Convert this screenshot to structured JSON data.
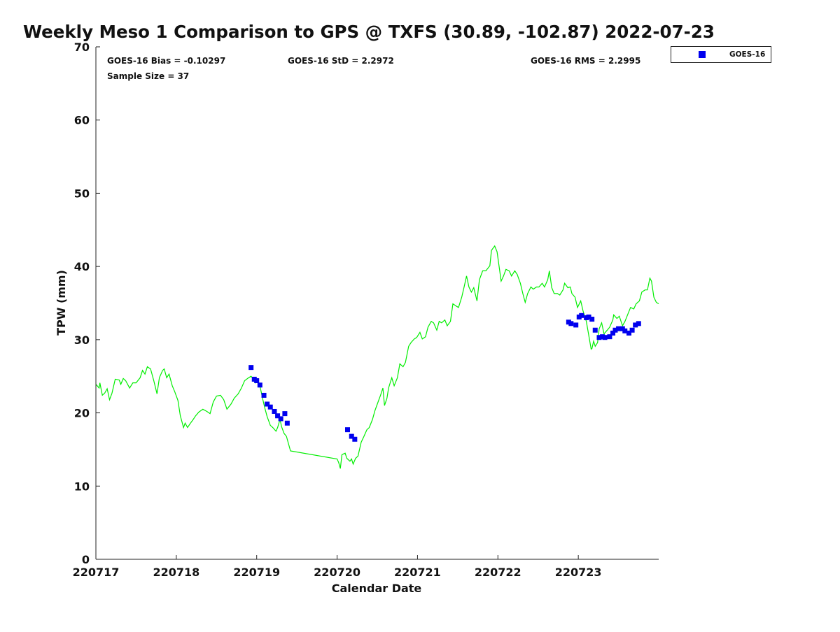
{
  "chart_data": {
    "type": "line+scatter",
    "title": "Weekly Meso 1 Comparison to GPS @ TXFS (30.89, -102.87) 2022-07-23",
    "xlabel": "Calendar Date",
    "ylabel": "TPW (mm)",
    "xlim_days": [
      0,
      7
    ],
    "ylim": [
      0,
      70
    ],
    "y_ticks": [
      "0",
      "10",
      "20",
      "30",
      "40",
      "50",
      "60",
      "70"
    ],
    "x_ticks": [
      "220717",
      "220718",
      "220719",
      "220720",
      "220721",
      "220722",
      "220723"
    ],
    "stats": {
      "bias": "GOES-16 Bias = -0.10297",
      "std": "GOES-16 StD = 2.2972",
      "rms": "GOES-16 RMS = 2.2995",
      "sample": "Sample Size = 37"
    },
    "legend": {
      "position": "top-right-outside",
      "entries": [
        "GOES-16"
      ]
    },
    "colors": {
      "gps": "#00ee00",
      "goes": "#0000ee"
    },
    "series": [
      {
        "name": "GPS",
        "style": "line",
        "points": [
          [
            0,
            23.9
          ],
          [
            0.04,
            23.4
          ],
          [
            0.05,
            24.1
          ],
          [
            0.08,
            22.4
          ],
          [
            0.11,
            22.7
          ],
          [
            0.14,
            23.3
          ],
          [
            0.17,
            21.8
          ],
          [
            0.2,
            22.7
          ],
          [
            0.24,
            24.6
          ],
          [
            0.29,
            24.5
          ],
          [
            0.31,
            23.9
          ],
          [
            0.34,
            24.7
          ],
          [
            0.37,
            24.4
          ],
          [
            0.42,
            23.4
          ],
          [
            0.46,
            24.1
          ],
          [
            0.5,
            24.1
          ],
          [
            0.55,
            24.8
          ],
          [
            0.58,
            25.8
          ],
          [
            0.61,
            25.3
          ],
          [
            0.64,
            26.3
          ],
          [
            0.68,
            26.0
          ],
          [
            0.72,
            24.4
          ],
          [
            0.76,
            22.6
          ],
          [
            0.79,
            24.8
          ],
          [
            0.83,
            25.8
          ],
          [
            0.85,
            26.0
          ],
          [
            0.88,
            24.8
          ],
          [
            0.91,
            25.3
          ],
          [
            0.95,
            23.7
          ],
          [
            0.98,
            22.9
          ],
          [
            1.02,
            21.7
          ],
          [
            1.05,
            19.6
          ],
          [
            1.09,
            18.0
          ],
          [
            1.11,
            18.6
          ],
          [
            1.14,
            18.0
          ],
          [
            1.17,
            18.5
          ],
          [
            1.21,
            19.1
          ],
          [
            1.24,
            19.6
          ],
          [
            1.28,
            20.1
          ],
          [
            1.33,
            20.5
          ],
          [
            1.38,
            20.2
          ],
          [
            1.42,
            19.9
          ],
          [
            1.46,
            21.5
          ],
          [
            1.5,
            22.3
          ],
          [
            1.55,
            22.4
          ],
          [
            1.59,
            21.8
          ],
          [
            1.63,
            20.5
          ],
          [
            1.68,
            21.2
          ],
          [
            1.72,
            22.0
          ],
          [
            1.77,
            22.6
          ],
          [
            1.81,
            23.4
          ],
          [
            1.85,
            24.4
          ],
          [
            1.9,
            24.8
          ],
          [
            1.93,
            25.0
          ],
          [
            1.96,
            24.6
          ],
          [
            1.98,
            24.1
          ],
          [
            2.01,
            24.6
          ],
          [
            2.04,
            23.7
          ],
          [
            2.07,
            22.1
          ],
          [
            2.1,
            20.7
          ],
          [
            2.13,
            19.5
          ],
          [
            2.17,
            18.3
          ],
          [
            2.2,
            18.0
          ],
          [
            2.24,
            17.5
          ],
          [
            2.26,
            18.0
          ],
          [
            2.29,
            19.1
          ],
          [
            2.31,
            18.1
          ],
          [
            2.34,
            17.2
          ],
          [
            2.37,
            16.8
          ],
          [
            2.39,
            16.0
          ],
          [
            2.42,
            14.8
          ],
          [
            3.0,
            13.7
          ],
          [
            3.02,
            13.2
          ],
          [
            3.04,
            12.4
          ],
          [
            3.06,
            14.3
          ],
          [
            3.1,
            14.5
          ],
          [
            3.12,
            13.8
          ],
          [
            3.16,
            13.4
          ],
          [
            3.18,
            13.7
          ],
          [
            3.2,
            13.0
          ],
          [
            3.23,
            13.8
          ],
          [
            3.26,
            14.1
          ],
          [
            3.3,
            16.0
          ],
          [
            3.33,
            16.7
          ],
          [
            3.37,
            17.7
          ],
          [
            3.4,
            18.0
          ],
          [
            3.44,
            19.1
          ],
          [
            3.47,
            20.3
          ],
          [
            3.5,
            21.2
          ],
          [
            3.54,
            22.4
          ],
          [
            3.57,
            23.4
          ],
          [
            3.59,
            21.0
          ],
          [
            3.62,
            22.0
          ],
          [
            3.64,
            23.4
          ],
          [
            3.68,
            24.8
          ],
          [
            3.71,
            23.7
          ],
          [
            3.75,
            24.8
          ],
          [
            3.78,
            26.7
          ],
          [
            3.82,
            26.3
          ],
          [
            3.85,
            26.9
          ],
          [
            3.89,
            29.1
          ],
          [
            3.92,
            29.6
          ],
          [
            3.96,
            30.1
          ],
          [
            3.99,
            30.3
          ],
          [
            4.03,
            31.0
          ],
          [
            4.06,
            30.1
          ],
          [
            4.1,
            30.4
          ],
          [
            4.13,
            31.7
          ],
          [
            4.17,
            32.5
          ],
          [
            4.2,
            32.3
          ],
          [
            4.24,
            31.3
          ],
          [
            4.27,
            32.5
          ],
          [
            4.3,
            32.3
          ],
          [
            4.34,
            32.7
          ],
          [
            4.37,
            31.9
          ],
          [
            4.41,
            32.5
          ],
          [
            4.44,
            34.9
          ],
          [
            4.48,
            34.6
          ],
          [
            4.51,
            34.4
          ],
          [
            4.55,
            35.8
          ],
          [
            4.58,
            37.2
          ],
          [
            4.61,
            38.7
          ],
          [
            4.64,
            37.2
          ],
          [
            4.67,
            36.5
          ],
          [
            4.7,
            37.1
          ],
          [
            4.74,
            35.3
          ],
          [
            4.77,
            38.2
          ],
          [
            4.81,
            39.4
          ],
          [
            4.85,
            39.4
          ],
          [
            4.9,
            40.1
          ],
          [
            4.92,
            42.2
          ],
          [
            4.96,
            42.8
          ],
          [
            4.99,
            42.0
          ],
          [
            5.02,
            39.6
          ],
          [
            5.04,
            38.0
          ],
          [
            5.07,
            38.7
          ],
          [
            5.1,
            39.6
          ],
          [
            5.14,
            39.4
          ],
          [
            5.17,
            38.7
          ],
          [
            5.21,
            39.4
          ],
          [
            5.24,
            38.9
          ],
          [
            5.28,
            37.7
          ],
          [
            5.31,
            36.3
          ],
          [
            5.34,
            35.1
          ],
          [
            5.37,
            36.3
          ],
          [
            5.41,
            37.2
          ],
          [
            5.44,
            36.9
          ],
          [
            5.48,
            37.2
          ],
          [
            5.51,
            37.2
          ],
          [
            5.55,
            37.7
          ],
          [
            5.58,
            37.2
          ],
          [
            5.62,
            38.2
          ],
          [
            5.64,
            39.4
          ],
          [
            5.67,
            37.1
          ],
          [
            5.7,
            36.3
          ],
          [
            5.74,
            36.3
          ],
          [
            5.77,
            36.1
          ],
          [
            5.81,
            36.8
          ],
          [
            5.83,
            37.7
          ],
          [
            5.87,
            37.1
          ],
          [
            5.9,
            37.2
          ],
          [
            5.92,
            36.3
          ],
          [
            5.96,
            35.8
          ],
          [
            5.99,
            34.4
          ],
          [
            6.03,
            35.3
          ],
          [
            6.06,
            33.9
          ],
          [
            6.1,
            32.5
          ],
          [
            6.13,
            30.6
          ],
          [
            6.16,
            28.7
          ],
          [
            6.17,
            28.8
          ],
          [
            6.19,
            29.8
          ],
          [
            6.21,
            29.1
          ],
          [
            6.24,
            29.6
          ],
          [
            6.26,
            31.5
          ],
          [
            6.29,
            32.3
          ],
          [
            6.32,
            30.8
          ],
          [
            6.36,
            31.3
          ],
          [
            6.39,
            31.7
          ],
          [
            6.43,
            32.7
          ],
          [
            6.44,
            33.4
          ],
          [
            6.48,
            32.9
          ],
          [
            6.51,
            33.2
          ],
          [
            6.55,
            31.9
          ],
          [
            6.58,
            32.5
          ],
          [
            6.62,
            33.6
          ],
          [
            6.65,
            34.4
          ],
          [
            6.69,
            34.2
          ],
          [
            6.72,
            34.9
          ],
          [
            6.76,
            35.3
          ],
          [
            6.79,
            36.5
          ],
          [
            6.83,
            36.8
          ],
          [
            6.86,
            36.8
          ],
          [
            6.89,
            38.4
          ],
          [
            6.91,
            38.0
          ],
          [
            6.94,
            35.8
          ],
          [
            6.97,
            35.1
          ],
          [
            7.0,
            34.9
          ]
        ]
      },
      {
        "name": "GOES-16",
        "style": "scatter-square",
        "points": [
          [
            1.93,
            26.2
          ],
          [
            1.97,
            24.6
          ],
          [
            2.0,
            24.4
          ],
          [
            2.04,
            23.8
          ],
          [
            2.09,
            22.4
          ],
          [
            2.13,
            21.2
          ],
          [
            2.17,
            20.8
          ],
          [
            2.22,
            20.2
          ],
          [
            2.26,
            19.6
          ],
          [
            2.3,
            19.2
          ],
          [
            2.35,
            19.9
          ],
          [
            2.38,
            18.6
          ],
          [
            3.13,
            17.7
          ],
          [
            3.18,
            16.8
          ],
          [
            3.22,
            16.4
          ],
          [
            5.88,
            32.4
          ],
          [
            5.91,
            32.2
          ],
          [
            5.97,
            32.0
          ],
          [
            6.01,
            33.1
          ],
          [
            6.04,
            33.3
          ],
          [
            6.1,
            33.0
          ],
          [
            6.13,
            33.1
          ],
          [
            6.17,
            32.8
          ],
          [
            6.21,
            31.3
          ],
          [
            6.26,
            30.3
          ],
          [
            6.3,
            30.4
          ],
          [
            6.33,
            30.3
          ],
          [
            6.39,
            30.4
          ],
          [
            6.43,
            30.9
          ],
          [
            6.46,
            31.3
          ],
          [
            6.5,
            31.5
          ],
          [
            6.55,
            31.5
          ],
          [
            6.58,
            31.2
          ],
          [
            6.63,
            30.9
          ],
          [
            6.67,
            31.3
          ],
          [
            6.71,
            32.0
          ],
          [
            6.75,
            32.2
          ]
        ]
      }
    ]
  }
}
